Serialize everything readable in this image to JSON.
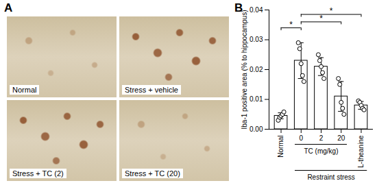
{
  "panel_labels": [
    "A",
    "B"
  ],
  "panel_a": {
    "images": [
      {
        "label": "Normal"
      },
      {
        "label": "Stress + vehicle"
      },
      {
        "label": "Stress + TC (2)"
      },
      {
        "label": "Stress + TC (20)"
      }
    ]
  },
  "chart_data": {
    "type": "bar",
    "categories": [
      "Normal",
      "0",
      "2",
      "20",
      "L-theanine"
    ],
    "values": [
      0.0045,
      0.023,
      0.021,
      0.011,
      0.008
    ],
    "errors": [
      0.001,
      0.006,
      0.003,
      0.005,
      0.0013
    ],
    "points": [
      [
        0.003,
        0.004,
        0.0045,
        0.005,
        0.0058
      ],
      [
        0.029,
        0.027,
        0.022,
        0.018,
        0.016
      ],
      [
        0.025,
        0.023,
        0.021,
        0.019,
        0.017
      ],
      [
        0.017,
        0.015,
        0.009,
        0.007,
        0.005
      ],
      [
        0.0095,
        0.009,
        0.008,
        0.007,
        0.0065
      ]
    ],
    "color": "#ffffff",
    "ylabel": "Iba-1 positive area (% to hippocampus)",
    "ylim": [
      0,
      0.04
    ],
    "yticks": [
      {
        "value": 0,
        "label": "0.00"
      },
      {
        "value": 0.01,
        "label": "0.01"
      },
      {
        "value": 0.02,
        "label": "0.02"
      },
      {
        "value": 0.03,
        "label": "0.03"
      },
      {
        "value": 0.04,
        "label": "0.04"
      }
    ],
    "groups": [
      {
        "label": "TC (mg/kg)",
        "from": 1,
        "to": 3
      },
      {
        "label": "Restraint stress",
        "from": 1,
        "to": 4
      }
    ],
    "annotations": [
      {
        "label": "*",
        "from": 0,
        "to": 1,
        "y": 0.034
      },
      {
        "label": "*",
        "from": 1,
        "to": 3,
        "y": 0.036
      },
      {
        "label": "*",
        "from": 1,
        "to": 4,
        "y": 0.0385
      }
    ]
  }
}
